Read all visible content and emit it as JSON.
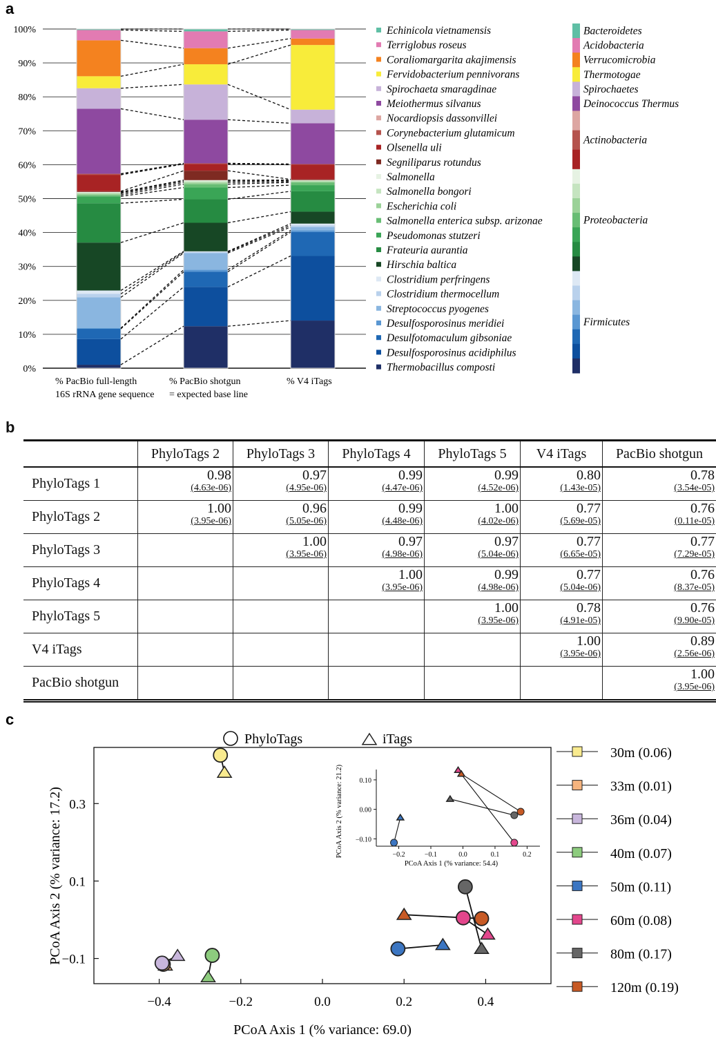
{
  "panel_labels": {
    "a": "a",
    "b": "b",
    "c": "c"
  },
  "chart_data": [
    {
      "type": "bar",
      "stacked": true,
      "categories": [
        "% PacBio full-length\n16S rRNA gene sequence",
        "% PacBio shotgun\n= expected base line",
        "% V4 iTags"
      ],
      "y_ticks": [
        "0%",
        "10%",
        "20%",
        "30%",
        "40%",
        "50%",
        "60%",
        "70%",
        "80%",
        "90%",
        "100%"
      ],
      "ylim": [
        0,
        100
      ],
      "grid": true,
      "series": [
        {
          "name": "Thermobacillus composti",
          "color": "#1f2f66",
          "values": [
            1,
            12.5,
            14
          ]
        },
        {
          "name": "Desulfosporosinus acidiphilus",
          "color": "#0d4f9e",
          "values": [
            7.5,
            11.7,
            19
          ]
        },
        {
          "name": "Desulfotomaculum gibsoniae",
          "color": "#1f68b4",
          "values": [
            3,
            4.5,
            7
          ]
        },
        {
          "name": "Desulfosporosinus meridiei",
          "color": "#5a97d2",
          "values": [
            0.2,
            0.6,
            0.5
          ]
        },
        {
          "name": "Streptococcus pyogenes",
          "color": "#8ab6e0",
          "values": [
            9,
            5,
            1
          ]
        },
        {
          "name": "Clostridium thermocellum",
          "color": "#b9d1ec",
          "values": [
            1,
            0.3,
            0.5
          ]
        },
        {
          "name": "Clostridium perfringens",
          "color": "#dde8f4",
          "values": [
            1,
            0.2,
            0.5
          ]
        },
        {
          "name": "Hirschia baltica",
          "color": "#174725",
          "values": [
            14,
            8.5,
            3.5
          ]
        },
        {
          "name": "Frateuria aurantia",
          "color": "#268b42",
          "values": [
            11.5,
            7,
            6
          ]
        },
        {
          "name": "Pseudomonas stutzeri",
          "color": "#3aa556",
          "values": [
            2,
            3.5,
            1.8
          ]
        },
        {
          "name": "Salmonella enterica subsp. arizonae",
          "color": "#68bd74",
          "values": [
            0.4,
            1,
            0.8
          ]
        },
        {
          "name": "Escherichia coli",
          "color": "#9bd298",
          "values": [
            0.4,
            0.5,
            0.3
          ]
        },
        {
          "name": "Salmonella bongori",
          "color": "#c5e4c0",
          "values": [
            0.3,
            0.4,
            0.3
          ]
        },
        {
          "name": "Salmonella",
          "color": "#e6f2e3",
          "values": [
            0.2,
            0.3,
            0.1
          ]
        },
        {
          "name": "Segniliparus rotundus",
          "color": "#7e2a22",
          "values": [
            0.2,
            2.8,
            0.2
          ]
        },
        {
          "name": "Olsenella uli",
          "color": "#a82324",
          "values": [
            4.8,
            2,
            4.3
          ]
        },
        {
          "name": "Corynebacterium glutamicum",
          "color": "#b5534d",
          "values": [
            0.3,
            0.2,
            0.2
          ]
        },
        {
          "name": "Nocardiopsis dassonvillei",
          "color": "#dda6a2",
          "values": [
            0,
            0,
            0
          ]
        },
        {
          "name": "Meiothermus silvanus",
          "color": "#8e49a0",
          "values": [
            19,
            13,
            12
          ]
        },
        {
          "name": "Spirochaeta smaragdinae",
          "color": "#c7b2d9",
          "values": [
            6,
            10.5,
            4
          ]
        },
        {
          "name": "Fervidobacterium pennivorans",
          "color": "#f8ec3a",
          "values": [
            3.5,
            6,
            19
          ]
        },
        {
          "name": "Coraliomargarita akajimensis",
          "color": "#f4821f",
          "values": [
            10.5,
            4.8,
            1.9
          ]
        },
        {
          "name": "Terriglobus roseus",
          "color": "#e27bb2",
          "values": [
            3,
            5,
            2.5
          ]
        },
        {
          "name": "Echinicola vietnamensis",
          "color": "#5fbfa5",
          "values": [
            0.3,
            0.7,
            0.3
          ]
        }
      ],
      "phyla": [
        {
          "name": "Bacteroidetes",
          "colors": [
            "#5fbfa5"
          ],
          "weight": 1
        },
        {
          "name": "Acidobacteria",
          "colors": [
            "#e27bb2"
          ],
          "weight": 1
        },
        {
          "name": "Verrucomicrobia",
          "colors": [
            "#f4821f"
          ],
          "weight": 1
        },
        {
          "name": "Thermotogae",
          "colors": [
            "#f8ec3a"
          ],
          "weight": 1
        },
        {
          "name": "Spirochaetes",
          "colors": [
            "#c7b2d9"
          ],
          "weight": 1
        },
        {
          "name": "Deinococcus Thermus",
          "colors": [
            "#8e49a0"
          ],
          "weight": 1
        },
        {
          "name": "Actinobacteria",
          "colors": [
            "#dda6a2",
            "#b5534d",
            "#a82324"
          ],
          "weight": 4
        },
        {
          "name": "Proteobacteria",
          "colors": [
            "#e6f2e3",
            "#c5e4c0",
            "#9bd298",
            "#68bd74",
            "#3aa556",
            "#268b42",
            "#174725"
          ],
          "weight": 7
        },
        {
          "name": "Firmicutes",
          "colors": [
            "#dde8f4",
            "#b9d1ec",
            "#8ab6e0",
            "#5a97d2",
            "#1f68b4",
            "#0d4f9e",
            "#1f2f66"
          ],
          "weight": 7
        }
      ]
    },
    {
      "type": "table",
      "columns": [
        "",
        "PhyloTags 2",
        "PhyloTags 3",
        "PhyloTags 4",
        "PhyloTags 5",
        "V4 iTags",
        "PacBio shotgun"
      ],
      "rows": [
        {
          "label": "PhyloTags 1",
          "cells": [
            {
              "v": "0.98",
              "p": "(4.63e-06)"
            },
            {
              "v": "0.97",
              "p": "(4.95e-06)"
            },
            {
              "v": "0.99",
              "p": "(4.47e-06)"
            },
            {
              "v": "0.99",
              "p": "(4.52e-06)"
            },
            {
              "v": "0.80",
              "p": "(1.43e-05)"
            },
            {
              "v": "0.78",
              "p": "(3.54e-05)"
            }
          ]
        },
        {
          "label": "PhyloTags 2",
          "cells": [
            {
              "v": "1.00",
              "p": "(3.95e-06)"
            },
            {
              "v": "0.96",
              "p": "(5.05e-06)"
            },
            {
              "v": "0.99",
              "p": "(4.48e-06)"
            },
            {
              "v": "1.00",
              "p": "(4.02e-06)"
            },
            {
              "v": "0.77",
              "p": "(5.69e-05)"
            },
            {
              "v": "0.76",
              "p": "(0.11e-05)"
            }
          ]
        },
        {
          "label": "PhyloTags 3",
          "cells": [
            null,
            {
              "v": "1.00",
              "p": "(3.95e-06)"
            },
            {
              "v": "0.97",
              "p": "(4.98e-06)"
            },
            {
              "v": "0.97",
              "p": "(5.04e-06)"
            },
            {
              "v": "0.77",
              "p": "(6.65e-05)"
            },
            {
              "v": "0.77",
              "p": "(7.29e-05)"
            }
          ]
        },
        {
          "label": "PhyloTags 4",
          "cells": [
            null,
            null,
            {
              "v": "1.00",
              "p": "(3.95e-06)"
            },
            {
              "v": "0.99",
              "p": "(4.98e-06)"
            },
            {
              "v": "0.77",
              "p": "(5.04e-06)"
            },
            {
              "v": "0.76",
              "p": "(8.37e-05)"
            }
          ]
        },
        {
          "label": "PhyloTags 5",
          "cells": [
            null,
            null,
            null,
            {
              "v": "1.00",
              "p": "(3.95e-06)"
            },
            {
              "v": "0.78",
              "p": "(4.91e-05)"
            },
            {
              "v": "0.76",
              "p": "(9.90e-05)"
            }
          ]
        },
        {
          "label": "V4 iTags",
          "cells": [
            null,
            null,
            null,
            null,
            {
              "v": "1.00",
              "p": "(3.95e-06)"
            },
            {
              "v": "0.89",
              "p": "(2.56e-06)"
            }
          ]
        },
        {
          "label": "PacBio shotgun",
          "cells": [
            null,
            null,
            null,
            null,
            null,
            {
              "v": "1.00",
              "p": "(3.95e-06)"
            }
          ]
        }
      ]
    },
    {
      "type": "scatter",
      "xlabel": "PCoA Axis 1 (% variance: 69.0)",
      "ylabel": "PCoA Axis 2 (% variance: 17.2)",
      "xlim": [
        -0.56,
        0.56
      ],
      "ylim": [
        -0.165,
        0.445
      ],
      "x_ticks": [
        -0.4,
        -0.2,
        0.0,
        0.2,
        0.4
      ],
      "y_ticks": [
        -0.1,
        0.1,
        0.3
      ],
      "marker_legend": [
        {
          "shape": "circle",
          "label": "PhyloTags"
        },
        {
          "shape": "triangle",
          "label": "iTags"
        }
      ],
      "samples": [
        {
          "label": "30m (0.06)",
          "color": "#f9eb8f",
          "circle": [
            -0.25,
            0.425
          ],
          "triangle": [
            -0.24,
            0.38
          ]
        },
        {
          "label": "33m (0.01)",
          "color": "#f6b47e",
          "circle": [
            -0.39,
            -0.115
          ],
          "triangle": [
            -0.385,
            -0.118
          ]
        },
        {
          "label": "36m (0.04)",
          "color": "#c8b6dc",
          "circle": [
            -0.393,
            -0.112
          ],
          "triangle": [
            -0.355,
            -0.093
          ]
        },
        {
          "label": "40m (0.07)",
          "color": "#8dcc7e",
          "circle": [
            -0.27,
            -0.092
          ],
          "triangle": [
            -0.28,
            -0.148
          ]
        },
        {
          "label": "50m (0.11)",
          "color": "#3c76c2",
          "circle": [
            0.185,
            -0.075
          ],
          "triangle": [
            0.295,
            -0.065
          ]
        },
        {
          "label": "60m (0.08)",
          "color": "#e3468c",
          "circle": [
            0.345,
            0.005
          ],
          "triangle": [
            0.405,
            -0.038
          ]
        },
        {
          "label": "80m (0.17)",
          "color": "#666666",
          "circle": [
            0.35,
            0.085
          ],
          "triangle": [
            0.39,
            -0.075
          ]
        },
        {
          "label": "120m (0.19)",
          "color": "#c75a25",
          "circle": [
            0.39,
            0.003
          ],
          "triangle": [
            0.2,
            0.013
          ]
        }
      ],
      "inset": {
        "xlabel": "PCoA Axis 1 (% variance: 54.4)",
        "ylabel": "PCoA Axis 2 (% variance: 21.2)",
        "xlim": [
          -0.27,
          0.24
        ],
        "ylim": [
          -0.125,
          0.135
        ],
        "x_ticks": [
          -0.2,
          -0.1,
          0.0,
          0.1,
          0.2
        ],
        "y_ticks": [
          -0.1,
          0.0,
          0.1
        ],
        "points": [
          {
            "color": "#3c76c2",
            "circle": [
              -0.215,
              -0.113
            ],
            "triangle": [
              -0.195,
              -0.028
            ]
          },
          {
            "color": "#e3468c",
            "circle": [
              0.16,
              -0.113
            ],
            "triangle": [
              -0.015,
              0.133
            ]
          },
          {
            "color": "#666666",
            "circle": [
              0.16,
              -0.02
            ],
            "triangle": [
              -0.04,
              0.035
            ]
          },
          {
            "color": "#c75a25",
            "circle": [
              0.18,
              -0.008
            ],
            "triangle": [
              -0.005,
              0.12
            ]
          }
        ]
      }
    }
  ]
}
